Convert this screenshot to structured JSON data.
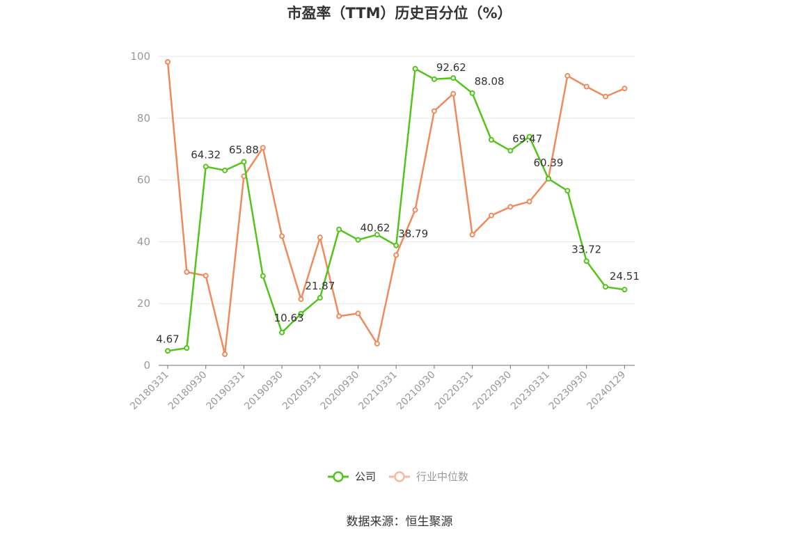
{
  "chart_data": {
    "type": "line",
    "title": "市盈率（TTM）历史百分位（%）",
    "ylim": [
      0,
      100
    ],
    "yticks": [
      0,
      20,
      40,
      60,
      80,
      100
    ],
    "grid": true,
    "legend_position": "bottom",
    "x": [
      "20180331",
      "20180630",
      "20180930",
      "20181231",
      "20190331",
      "20190630",
      "20190930",
      "20191231",
      "20200331",
      "20200630",
      "20200930",
      "20201231",
      "20210331",
      "20210630",
      "20210930",
      "20211231",
      "20220331",
      "20220630",
      "20220930",
      "20221231",
      "20230331",
      "20230630",
      "20230930",
      "20231231",
      "20240129"
    ],
    "x_tick_labels": [
      "20180331",
      "20180930",
      "20190331",
      "20190930",
      "20200331",
      "20200930",
      "20210331",
      "20210930",
      "20220331",
      "20220930",
      "20230331",
      "20230930",
      "20240129"
    ],
    "series": [
      {
        "name": "公司",
        "color": "#52c41a",
        "values": [
          4.67,
          5.6,
          64.32,
          63.1,
          65.88,
          28.9,
          10.63,
          16.7,
          21.87,
          44.0,
          40.62,
          42.3,
          38.79,
          96.0,
          92.62,
          93.0,
          88.08,
          73.0,
          69.47,
          74.0,
          60.39,
          56.5,
          33.72,
          25.4,
          24.51
        ],
        "labels": {
          "0": "4.67",
          "2": "64.32",
          "4": "65.88",
          "6": "10.63",
          "8": "21.87",
          "10": "40.62",
          "12": "38.79",
          "14": "92.62",
          "16": "88.08",
          "18": "69.47",
          "20": "60.39",
          "22": "33.72",
          "24": "24.51"
        }
      },
      {
        "name": "行业中位数",
        "color": "#f08a5d",
        "values": [
          98.2,
          30.2,
          29.0,
          3.6,
          61.2,
          70.4,
          41.8,
          21.4,
          41.4,
          15.9,
          16.8,
          7.0,
          35.7,
          50.3,
          82.3,
          87.9,
          42.3,
          48.5,
          51.3,
          53.0,
          60.5,
          93.7,
          90.2,
          87.0,
          89.6
        ]
      }
    ]
  },
  "source": "数据来源：恒生聚源"
}
